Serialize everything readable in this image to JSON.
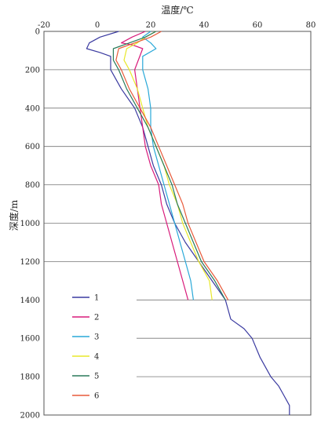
{
  "chart_data": {
    "type": "line",
    "title": "",
    "xlabel": "温度/℃",
    "ylabel": "深度/m",
    "x_axis_position": "top",
    "y_axis_inverted": true,
    "xlim": [
      -20,
      80
    ],
    "ylim": [
      0,
      2000
    ],
    "x_ticks": [
      -20,
      0,
      20,
      40,
      60,
      80
    ],
    "y_ticks": [
      0,
      200,
      400,
      600,
      800,
      1000,
      1200,
      1400,
      1600,
      1800,
      2000
    ],
    "grid": "horizontal",
    "legend_placement": "lower-left",
    "series": [
      {
        "name": "1",
        "color": "#3a3aa0",
        "points": [
          [
            8,
            0
          ],
          [
            1,
            30
          ],
          [
            -3,
            60
          ],
          [
            -4,
            90
          ],
          [
            1,
            110
          ],
          [
            5,
            130
          ],
          [
            5,
            200
          ],
          [
            9,
            300
          ],
          [
            14,
            400
          ],
          [
            17,
            500
          ],
          [
            19,
            600
          ],
          [
            21,
            700
          ],
          [
            24,
            800
          ],
          [
            26,
            900
          ],
          [
            29,
            1000
          ],
          [
            33,
            1100
          ],
          [
            38,
            1200
          ],
          [
            43,
            1300
          ],
          [
            48,
            1400
          ],
          [
            49,
            1450
          ],
          [
            50,
            1500
          ],
          [
            55,
            1550
          ],
          [
            58,
            1600
          ],
          [
            61,
            1700
          ],
          [
            65,
            1800
          ],
          [
            68,
            1850
          ],
          [
            70,
            1900
          ],
          [
            72,
            1950
          ],
          [
            72,
            2000
          ]
        ]
      },
      {
        "name": "2",
        "color": "#d81a7a",
        "points": [
          [
            18,
            0
          ],
          [
            13,
            30
          ],
          [
            9,
            60
          ],
          [
            13,
            70
          ],
          [
            17,
            90
          ],
          [
            14,
            200
          ],
          [
            15,
            300
          ],
          [
            16,
            400
          ],
          [
            17,
            500
          ],
          [
            18,
            600
          ],
          [
            20,
            700
          ],
          [
            23,
            800
          ],
          [
            24,
            900
          ],
          [
            26,
            1000
          ],
          [
            28,
            1100
          ],
          [
            30,
            1200
          ],
          [
            32,
            1300
          ],
          [
            34,
            1400
          ]
        ]
      },
      {
        "name": "3",
        "color": "#28a8d8",
        "points": [
          [
            20,
            0
          ],
          [
            17,
            30
          ],
          [
            20,
            60
          ],
          [
            22,
            90
          ],
          [
            17,
            130
          ],
          [
            17,
            200
          ],
          [
            19,
            300
          ],
          [
            20,
            400
          ],
          [
            20,
            500
          ],
          [
            21,
            600
          ],
          [
            23,
            700
          ],
          [
            25,
            800
          ],
          [
            27,
            900
          ],
          [
            29,
            1000
          ],
          [
            31,
            1100
          ],
          [
            33,
            1200
          ],
          [
            35,
            1300
          ],
          [
            36,
            1400
          ]
        ]
      },
      {
        "name": "4",
        "color": "#e8e82a",
        "points": [
          [
            22,
            0
          ],
          [
            18,
            30
          ],
          [
            15,
            60
          ],
          [
            11,
            90
          ],
          [
            10,
            150
          ],
          [
            12,
            200
          ],
          [
            15,
            300
          ],
          [
            17,
            400
          ],
          [
            19,
            500
          ],
          [
            22,
            600
          ],
          [
            25,
            700
          ],
          [
            27,
            800
          ],
          [
            30,
            900
          ],
          [
            32,
            1000
          ],
          [
            35,
            1100
          ],
          [
            38,
            1200
          ],
          [
            42,
            1300
          ],
          [
            43,
            1400
          ]
        ]
      },
      {
        "name": "5",
        "color": "#2a7a5a",
        "points": [
          [
            22,
            0
          ],
          [
            18,
            30
          ],
          [
            12,
            60
          ],
          [
            6,
            90
          ],
          [
            6,
            150
          ],
          [
            8,
            200
          ],
          [
            11,
            300
          ],
          [
            15,
            400
          ],
          [
            19,
            500
          ],
          [
            22,
            600
          ],
          [
            25,
            700
          ],
          [
            28,
            800
          ],
          [
            30,
            900
          ],
          [
            33,
            1000
          ],
          [
            36,
            1100
          ],
          [
            39,
            1200
          ],
          [
            44,
            1300
          ],
          [
            48,
            1400
          ]
        ]
      },
      {
        "name": "6",
        "color": "#e85a3a",
        "points": [
          [
            24,
            0
          ],
          [
            20,
            30
          ],
          [
            14,
            60
          ],
          [
            8,
            90
          ],
          [
            7,
            150
          ],
          [
            9,
            200
          ],
          [
            12,
            300
          ],
          [
            16,
            400
          ],
          [
            20,
            500
          ],
          [
            23,
            600
          ],
          [
            26,
            700
          ],
          [
            29,
            800
          ],
          [
            32,
            900
          ],
          [
            34,
            1000
          ],
          [
            37,
            1100
          ],
          [
            40,
            1200
          ],
          [
            45,
            1300
          ],
          [
            49,
            1400
          ]
        ]
      }
    ]
  }
}
